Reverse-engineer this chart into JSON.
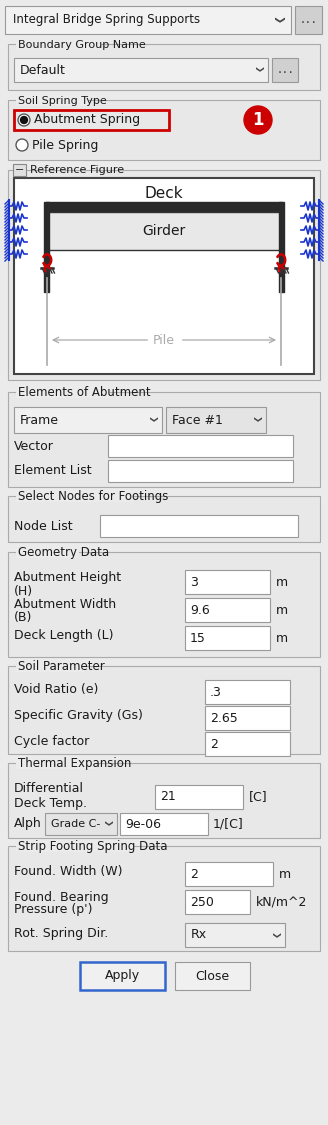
{
  "bg_color": "#ebebeb",
  "white": "#ffffff",
  "input_bg": "#ffffff",
  "dropdown_bg": "#f5f5f5",
  "dropdown_bg2": "#e8e8e8",
  "border_col": "#999999",
  "dark_border": "#555555",
  "text_col": "#1a1a1a",
  "label_col": "#222222",
  "red_col": "#cc0000",
  "blue_col": "#1a35cc",
  "gray_col": "#aaaaaa",
  "dark_col": "#2a2a2a",
  "title_dropdown": "Integral Bridge Spring Supports",
  "boundary_label": "Boundary Group Name",
  "default_val": "Default",
  "soil_spring_label": "Soil Spring Type",
  "abutment_spring": "Abutment Spring",
  "pile_spring": "Pile Spring",
  "ref_fig_label": "Reference Figure",
  "deck_label": "Deck",
  "girder_label": "Girder",
  "pile_label": "Pile",
  "elements_label": "Elements of Abutment",
  "frame_text": "Frame",
  "face_text": "Face #1",
  "vector_label": "Vector",
  "elem_list_label": "Element List",
  "footings_label": "Select Nodes for Footings",
  "node_list_label": "Node List",
  "geom_label": "Geometry Data",
  "abut_h_label1": "Abutment Height",
  "abut_h_label2": "(H)",
  "abut_w_label1": "Abutment Width",
  "abut_w_label2": "(B)",
  "deck_len_label": "Deck Length (L)",
  "h_val": "3",
  "b_val": "9.6",
  "l_val": "15",
  "m_unit": "m",
  "soil_label": "Soil Parameter",
  "void_label": "Void Ratio (e)",
  "sg_label": "Specific Gravity (Gs)",
  "cycle_label": "Cycle factor",
  "void_val": ".3",
  "sg_val": "2.65",
  "cycle_val": "2",
  "thermal_label": "Thermal Expansion",
  "diff_label1": "Differential",
  "diff_label2": "Deck Temp.",
  "temp_val": "21",
  "temp_unit": "[C]",
  "alph_label": "Alph",
  "grade_val": "Grade C-",
  "alpha_val": "9e-06",
  "alpha_unit": "1/[C]",
  "strip_label": "Strip Footing Spring Data",
  "fw_label": "Found. Width (W)",
  "fb_label1": "Found. Bearing",
  "fb_label2": "Pressure (p')",
  "rot_label": "Rot. Spring Dir.",
  "fw_val": "2",
  "fb_val": "250",
  "fb_unit": "kN/m^2",
  "rx_val": "Rx",
  "apply_text": "Apply",
  "close_text": "Close",
  "apply_border": "#3366cc",
  "close_border": "#999999"
}
